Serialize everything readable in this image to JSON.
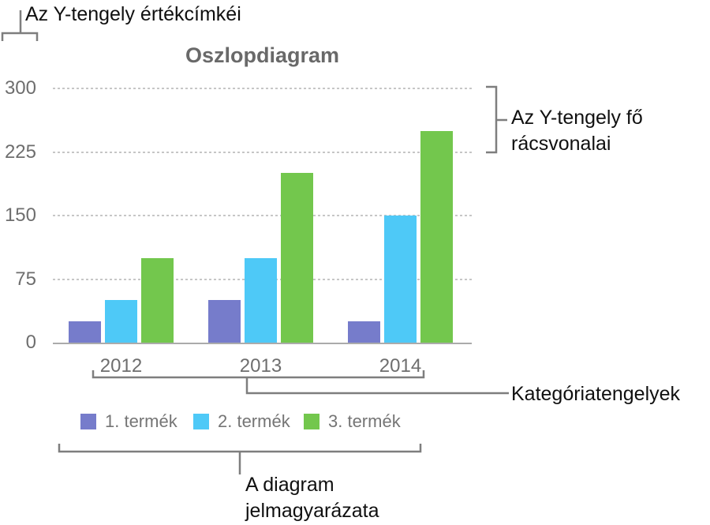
{
  "callouts": {
    "y_value_labels": "Az Y-tengely értékcímkéi",
    "y_gridlines_line1": "Az Y-tengely fő",
    "y_gridlines_line2": "rácsvonalai",
    "category_axes": "Kategóriatengelyek",
    "legend_line1": "A diagram",
    "legend_line2": "jelmagyarázata"
  },
  "chart_data": {
    "type": "bar",
    "title": "Oszlopdiagram",
    "categories": [
      "2012",
      "2013",
      "2014"
    ],
    "series": [
      {
        "name": "1. termék",
        "color": "#767CCB",
        "values": [
          25,
          50,
          25
        ]
      },
      {
        "name": "2. termék",
        "color": "#4EC9F7",
        "values": [
          50,
          100,
          150
        ]
      },
      {
        "name": "3. termék",
        "color": "#73C74D",
        "values": [
          100,
          200,
          250
        ]
      }
    ],
    "yticks": [
      0,
      75,
      150,
      225,
      300
    ],
    "ylim": [
      0,
      300
    ],
    "xlabel": "",
    "ylabel": "",
    "grid": "dotted-horizontal",
    "legend_position": "bottom"
  },
  "colors": {
    "bracket": "#7e7e7e",
    "axis_line": "#ababab",
    "gridline": "#c6c6c6",
    "title_text": "#696969",
    "tick_text": "#6e6e6e",
    "legend_text": "#757575",
    "callout_text": "#101010"
  }
}
